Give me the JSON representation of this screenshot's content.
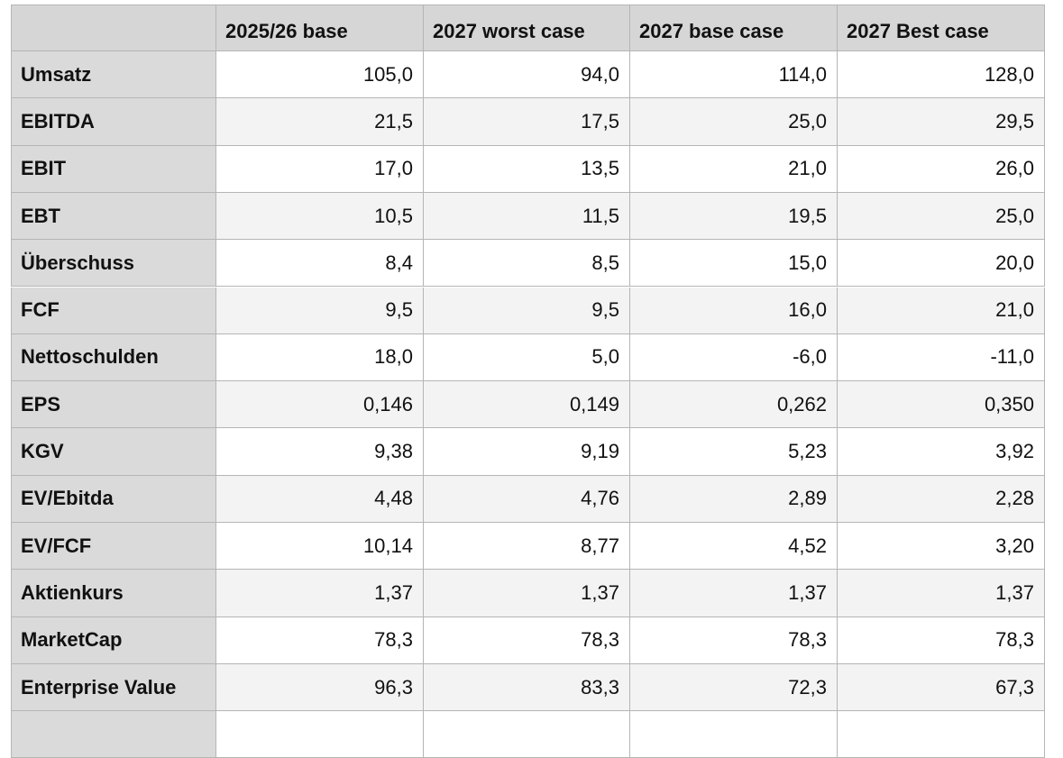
{
  "table": {
    "header": [
      "2025/26 base",
      "2027 worst case",
      "2027 base case",
      "2027 Best case"
    ],
    "rows": [
      [
        "Umsatz",
        "105,0",
        "94,0",
        "114,0",
        "128,0"
      ],
      [
        "EBITDA",
        "21,5",
        "17,5",
        "25,0",
        "29,5"
      ],
      [
        "EBIT",
        "17,0",
        "13,5",
        "21,0",
        "26,0"
      ],
      [
        "EBT",
        "10,5",
        "11,5",
        "19,5",
        "25,0"
      ],
      [
        "Überschuss",
        "8,4",
        "8,5",
        "15,0",
        "20,0"
      ],
      [
        "FCF",
        "9,5",
        "9,5",
        "16,0",
        "21,0"
      ],
      [
        "Nettoschulden",
        "18,0",
        "5,0",
        "-6,0",
        "-11,0"
      ],
      [
        "EPS",
        "0,146",
        "0,149",
        "0,262",
        "0,350"
      ],
      [
        "KGV",
        "9,38",
        "9,19",
        "5,23",
        "3,92"
      ],
      [
        "EV/Ebitda",
        "4,48",
        "4,76",
        "2,89",
        "2,28"
      ],
      [
        "EV/FCF",
        "10,14",
        "8,77",
        "4,52",
        "3,20"
      ],
      [
        "Aktienkurs",
        "1,37",
        "1,37",
        "1,37",
        "1,37"
      ],
      [
        "MarketCap",
        "78,3",
        "78,3",
        "78,3",
        "78,3"
      ],
      [
        "Enterprise Value",
        "96,3",
        "83,3",
        "72,3",
        "67,3"
      ]
    ]
  }
}
